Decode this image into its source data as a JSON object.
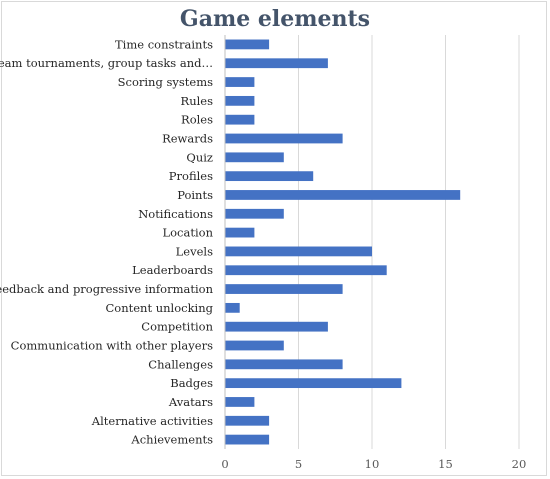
{
  "chart_data": {
    "type": "bar",
    "orientation": "horizontal",
    "title": "Game elements",
    "xlabel": "",
    "ylabel": "",
    "xlim": [
      0,
      20
    ],
    "x_ticks": [
      0,
      5,
      10,
      15,
      20
    ],
    "grid": true,
    "bar_color": "#4472c4",
    "gridline_color": "#d9d9d9",
    "categories": [
      "Time constraints",
      "Team tournaments, group tasks and…",
      "Scoring systems",
      "Rules",
      "Roles",
      "Rewards",
      "Quiz",
      "Profiles",
      "Points",
      "Notifications",
      "Location",
      "Levels",
      "Leaderboards",
      "Feedback and progressive information",
      "Content unlocking",
      "Competition",
      "Communication with other players",
      "Challenges",
      "Badges",
      "Avatars",
      "Alternative activities",
      "Achievements"
    ],
    "values": [
      3,
      7,
      2,
      2,
      2,
      8,
      4,
      6,
      16,
      4,
      2,
      10,
      11,
      8,
      1,
      7,
      4,
      8,
      12,
      2,
      3,
      3
    ]
  }
}
